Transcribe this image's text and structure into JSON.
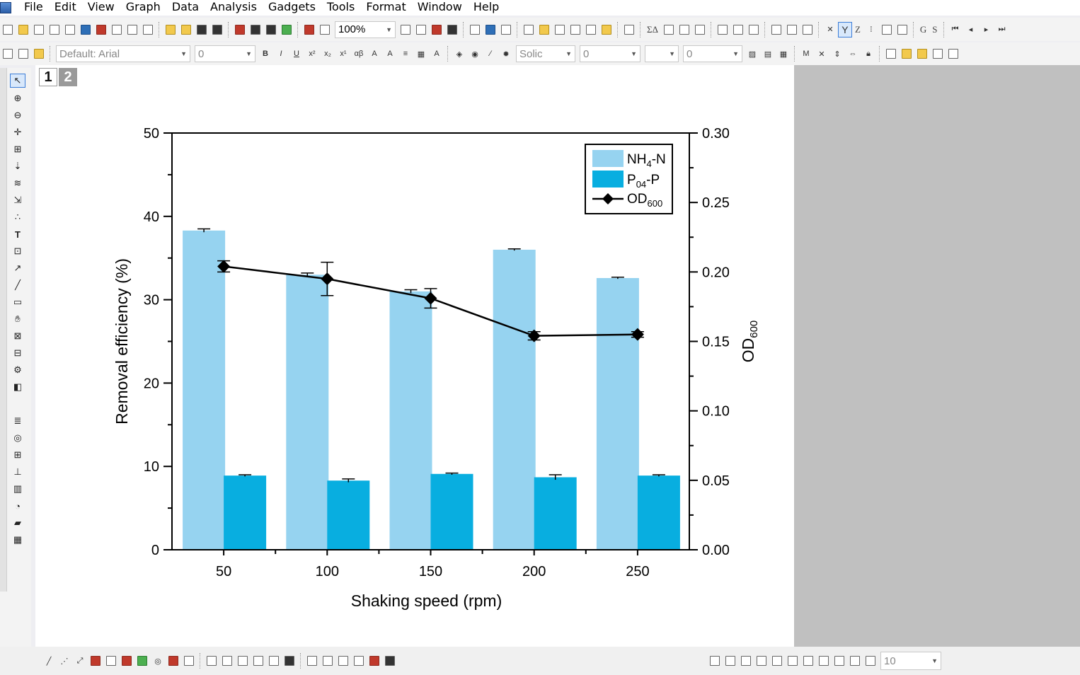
{
  "menu": [
    "File",
    "Edit",
    "View",
    "Graph",
    "Data",
    "Analysis",
    "Gadgets",
    "Tools",
    "Format",
    "Window",
    "Help"
  ],
  "toolbar": {
    "zoom": "100%",
    "font": "Default: Arial",
    "font_size": "0",
    "line_style": "Solic",
    "line_width_1": "0",
    "line_width_2": "0",
    "text_labels": [
      "ΣΔ",
      "Y",
      "Z",
      "G",
      "S"
    ]
  },
  "bottom_toolbar": {
    "value": "10"
  },
  "layer_tabs": [
    "1",
    "2"
  ],
  "chart_data": {
    "type": "bar",
    "categories": [
      "50",
      "100",
      "150",
      "200",
      "250"
    ],
    "xlabel": "Shaking speed (rpm)",
    "ylabel": "Removal efficiency (%)",
    "ylabel_right": "OD600",
    "ylim": [
      0,
      50
    ],
    "ylim_right": [
      0,
      0.3
    ],
    "yticks": [
      "0",
      "10",
      "20",
      "30",
      "40",
      "50"
    ],
    "yticks_right": [
      "0.00",
      "0.05",
      "0.10",
      "0.15",
      "0.20",
      "0.25",
      "0.30"
    ],
    "series": [
      {
        "name": "NH4-N",
        "values": [
          38.3,
          33.0,
          31.0,
          36.0,
          32.6
        ],
        "errors": [
          0.2,
          0.2,
          0.2,
          0.1,
          0.1
        ],
        "color": "#96d3f0"
      },
      {
        "name": "P04-P",
        "values": [
          8.9,
          8.3,
          9.1,
          8.7,
          8.9
        ],
        "errors": [
          0.1,
          0.2,
          0.1,
          0.3,
          0.1
        ],
        "color": "#08aee0"
      }
    ],
    "line_series": {
      "name": "OD600",
      "axis": "right",
      "values": [
        0.204,
        0.195,
        0.181,
        0.154,
        0.155
      ],
      "errors": [
        0.004,
        0.012,
        0.007,
        0.003,
        0.002
      ],
      "color": "#000000"
    },
    "legend_position": "top-right"
  }
}
